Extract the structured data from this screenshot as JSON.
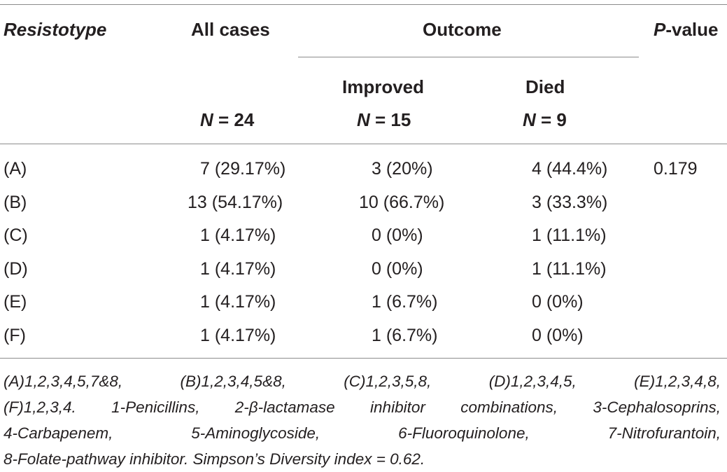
{
  "header": {
    "resistotype": "Resistotype",
    "all_cases": "All cases",
    "outcome": "Outcome",
    "p_prefix": "P",
    "p_suffix": "-value",
    "improved": "Improved",
    "died": "Died",
    "n_symbol": "N",
    "n_all": " = 24",
    "n_improved": " = 15",
    "n_died": " = 9"
  },
  "rows": [
    {
      "label": "(A)",
      "all": "7 (29.17%)",
      "improved": "3 (20%)",
      "died": "4 (44.4%)",
      "p": "0.179"
    },
    {
      "label": "(B)",
      "all": "13 (54.17%)",
      "improved": "10 (66.7%)",
      "died": "3 (33.3%)",
      "p": ""
    },
    {
      "label": "(C)",
      "all": "1 (4.17%)",
      "improved": "0 (0%)",
      "died": "1 (11.1%)",
      "p": ""
    },
    {
      "label": "(D)",
      "all": "1 (4.17%)",
      "improved": "0 (0%)",
      "died": "1 (11.1%)",
      "p": ""
    },
    {
      "label": "(E)",
      "all": "1 (4.17%)",
      "improved": "1 (6.7%)",
      "died": "0 (0%)",
      "p": ""
    },
    {
      "label": "(F)",
      "all": "1 (4.17%)",
      "improved": "1 (6.7%)",
      "died": "0 (0%)",
      "p": ""
    }
  ],
  "footnote": {
    "line1": [
      "(A)1,2,3,4,5,7&8,",
      "(B)1,2,3,4,5&8,",
      "(C)1,2,3,5,8,",
      "(D)1,2,3,4,5,",
      "(E)1,2,3,4,8,"
    ],
    "line2": [
      "(F)1,2,3,4.",
      "1-Penicillins,",
      "2-β-lactamase",
      "inhibitor",
      "combinations,",
      "3-Cephalosoprins,"
    ],
    "line3": [
      "4-Carbapenem,",
      "5-Aminoglycoside,",
      "6-Fluoroquinolone,",
      "7-Nitrofurantoin,"
    ],
    "line4": "8-Folate-pathway inhibitor. Simpson’s Diversity index = 0.62."
  }
}
